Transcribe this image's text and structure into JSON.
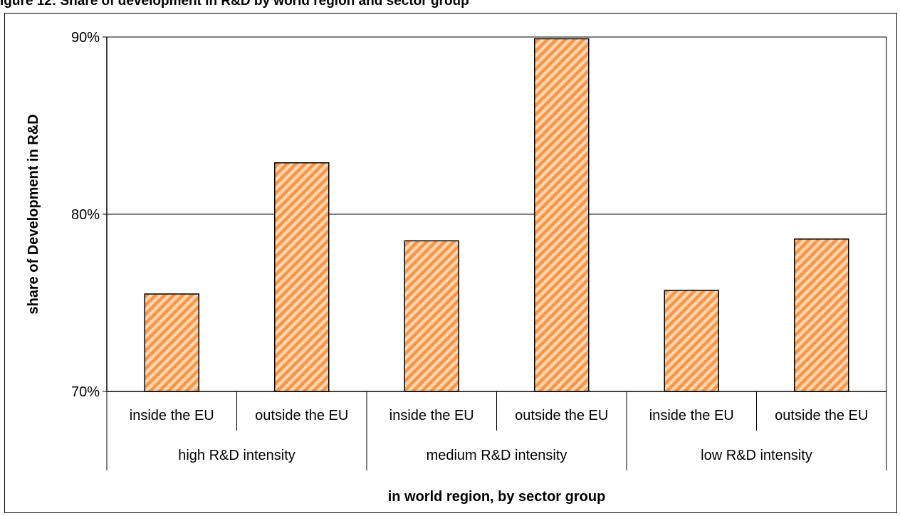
{
  "figure_title": "igure 12: Share of development in R&D by world region and sector group",
  "chart_data": {
    "type": "bar",
    "ylabel": "share of Development in R&D",
    "xlabel": "in world region, by sector group",
    "ylim": [
      0.7,
      0.9
    ],
    "yticks": [
      {
        "value": 0.7,
        "label": "70%"
      },
      {
        "value": 0.8,
        "label": "80%"
      },
      {
        "value": 0.9,
        "label": "90%"
      }
    ],
    "grid": true,
    "bar_fill": "#f79646",
    "bar_stripe": "#fcd5b0",
    "groups": [
      "high R&D intensity",
      "medium R&D intensity",
      "low R&D intensity"
    ],
    "categories": [
      {
        "label": "inside the EU",
        "group": 0,
        "value": 0.755
      },
      {
        "label": "outside the EU",
        "group": 0,
        "value": 0.829
      },
      {
        "label": "inside the EU",
        "group": 1,
        "value": 0.785
      },
      {
        "label": "outside the EU",
        "group": 1,
        "value": 0.899
      },
      {
        "label": "inside the EU",
        "group": 2,
        "value": 0.757
      },
      {
        "label": "outside the EU",
        "group": 2,
        "value": 0.786
      }
    ]
  }
}
